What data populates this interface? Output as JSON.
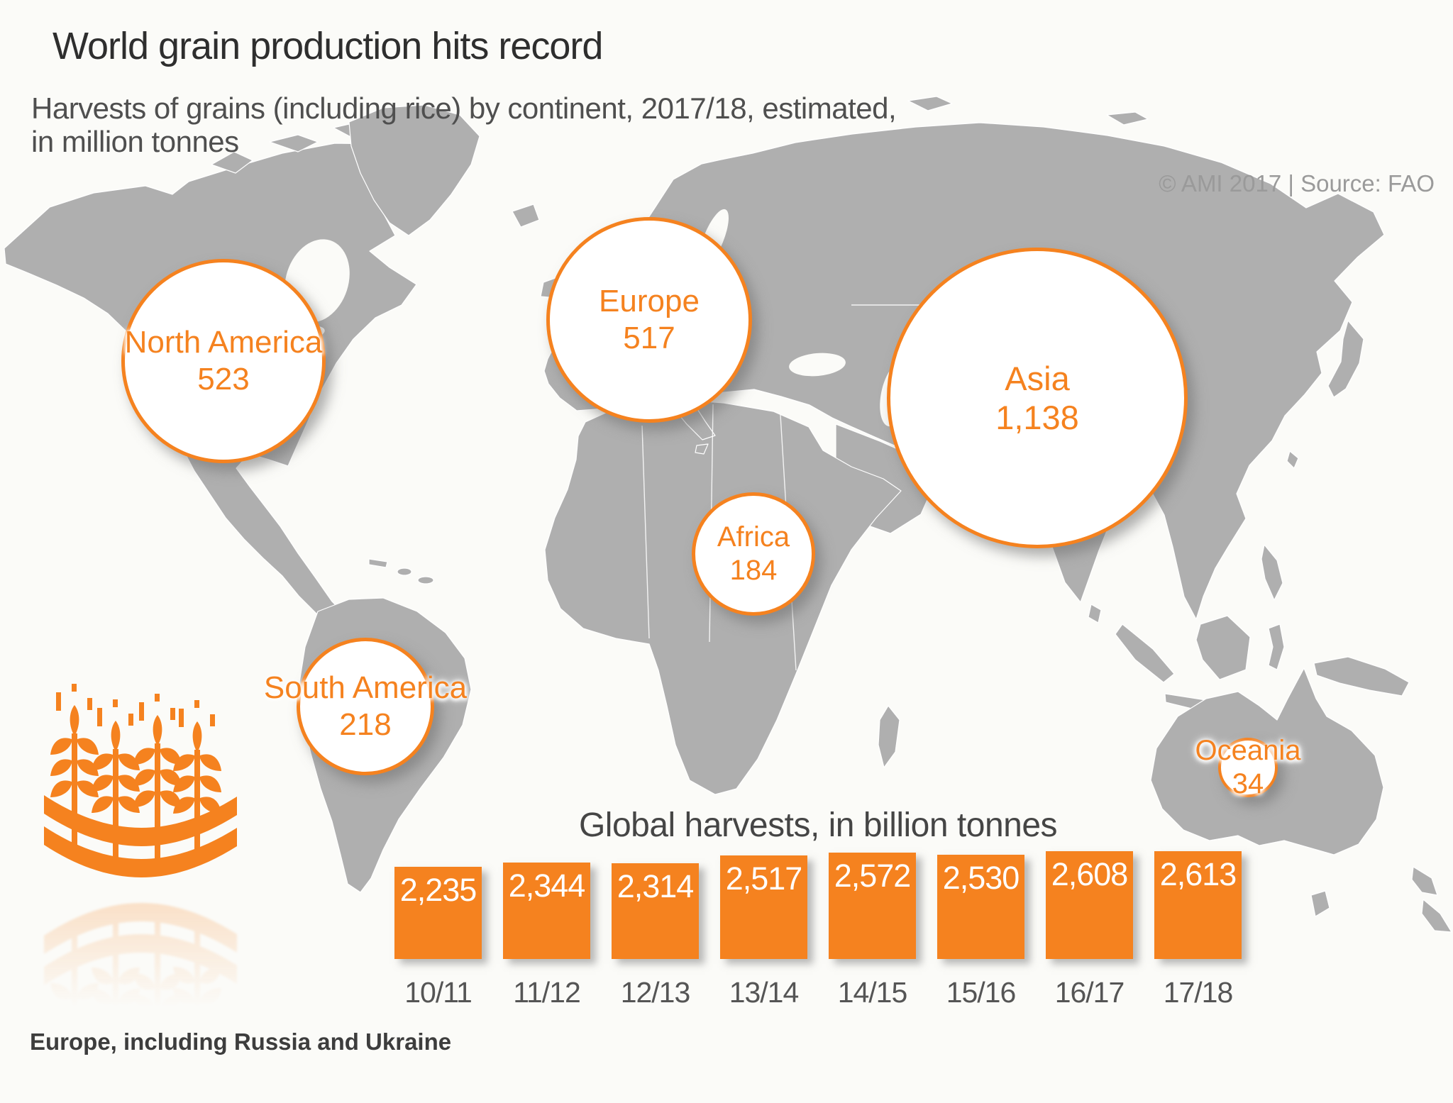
{
  "header": {
    "title": "World grain production hits record",
    "subtitle_line1": "Harvests of grains (including rice) by continent, 2017/18, estimated,",
    "subtitle_line2": "in million tonnes",
    "source": "© AMI 2017 | Source: FAO"
  },
  "chart_data": [
    {
      "type": "bubble",
      "title": "Harvests of grains (including rice) by continent, 2017/18, estimated, in million tonnes",
      "points": [
        {
          "label": "North America",
          "value": 523,
          "display": "523"
        },
        {
          "label": "Europe",
          "value": 517,
          "display": "517"
        },
        {
          "label": "Asia",
          "value": 1138,
          "display": "1,138"
        },
        {
          "label": "Africa",
          "value": 184,
          "display": "184"
        },
        {
          "label": "South America",
          "value": 218,
          "display": "218"
        },
        {
          "label": "Oceania",
          "value": 34,
          "display": "34"
        }
      ]
    },
    {
      "type": "bar",
      "title": "Global harvests, in billion tonnes",
      "categories": [
        "10/11",
        "11/12",
        "12/13",
        "13/14",
        "14/15",
        "15/16",
        "16/17",
        "17/18"
      ],
      "values": [
        2235,
        2344,
        2314,
        2517,
        2572,
        2530,
        2608,
        2613
      ],
      "value_labels": [
        "2,235",
        "2,344",
        "2,314",
        "2,517",
        "2,572",
        "2,530",
        "2,608",
        "2,613"
      ],
      "ylim": [
        0,
        2700
      ],
      "grid": false,
      "legend": "none"
    }
  ],
  "footnote": "Europe, including Russia and Ukraine",
  "icons": {
    "logo": "wheat-grain-logo-icon"
  },
  "colors": {
    "accent_orange": "#F5821F",
    "map_gray": "#AFAFAF",
    "title_text": "#2E2E2E",
    "subtitle_text": "#4F4F4F",
    "source_text": "#9A9A9A",
    "bar_value_text": "#FFFFFF",
    "category_text": "#555555",
    "background": "#FBFBF8"
  }
}
